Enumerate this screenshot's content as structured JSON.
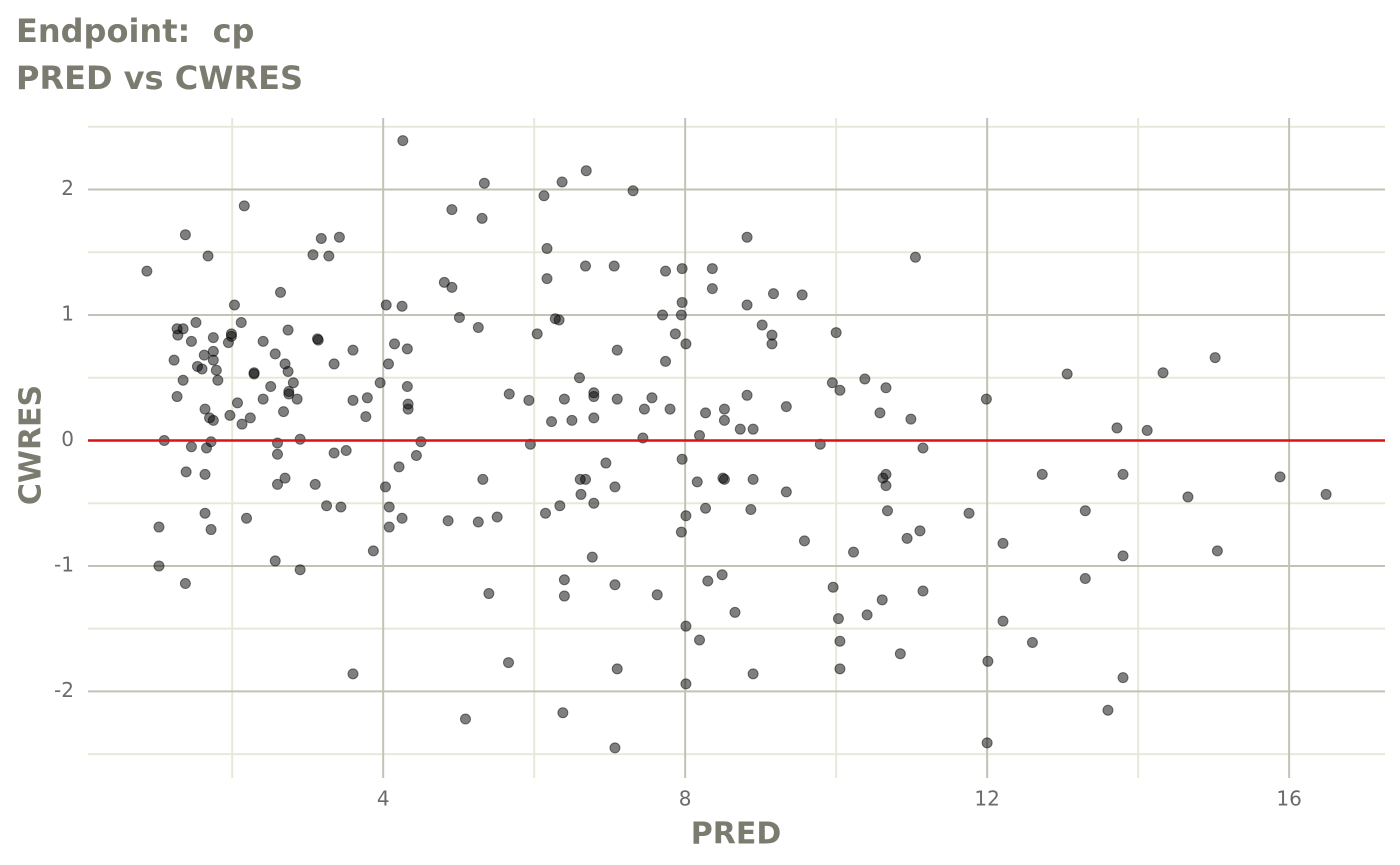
{
  "chart_data": {
    "type": "scatter",
    "title": "Endpoint:  cp",
    "subtitle": "PRED vs CWRES",
    "x_label": "PRED",
    "y_label": "CWRES",
    "xlim": [
      0.09,
      17.27
    ],
    "ylim": [
      -2.69,
      2.57
    ],
    "xticks": [
      4,
      8,
      12,
      16
    ],
    "yticks": [
      -2,
      -1,
      0,
      1,
      2
    ],
    "x_minor_grid": [
      2,
      6,
      10,
      14
    ],
    "y_minor_grid": [
      -2.5,
      -1.5,
      -0.5,
      0.5,
      1.5,
      2.5
    ],
    "grid": true,
    "grid_color": "#c2c2b6",
    "minor_grid_color": "#e8e8da",
    "hline": 0,
    "hline_color": "#dd1111",
    "color": "#000000",
    "alpha": 0.5,
    "x": [
      0.87,
      1.03,
      1.03,
      1.1,
      1.38,
      1.38,
      1.27,
      1.35,
      1.28,
      1.23,
      1.27,
      1.35,
      1.39,
      1.46,
      1.46,
      1.52,
      1.54,
      1.6,
      1.63,
      1.64,
      1.64,
      1.64,
      1.66,
      1.68,
      1.7,
      1.72,
      1.72,
      1.75,
      1.75,
      1.75,
      1.75,
      1.79,
      1.81,
      1.95,
      1.97,
      1.99,
      1.99,
      2.03,
      2.07,
      2.12,
      2.13,
      2.16,
      2.19,
      2.24,
      2.29,
      2.29,
      2.41,
      2.41,
      2.51,
      2.57,
      2.57,
      2.6,
      2.6,
      2.6,
      2.64,
      2.68,
      2.7,
      2.7,
      2.74,
      2.74,
      2.75,
      2.75,
      2.81,
      2.86,
      2.9,
      2.9,
      3.07,
      3.1,
      3.13,
      3.14,
      3.18,
      3.25,
      3.28,
      3.35,
      3.35,
      3.42,
      3.44,
      3.51,
      3.6,
      3.6,
      3.6,
      3.77,
      3.79,
      3.87,
      3.96,
      4.03,
      4.04,
      4.07,
      4.08,
      4.08,
      4.15,
      4.21,
      4.25,
      4.25,
      4.26,
      4.32,
      4.32,
      4.33,
      4.33,
      4.44,
      4.5,
      4.81,
      4.86,
      4.91,
      4.91,
      5.01,
      5.09,
      5.26,
      5.26,
      5.31,
      5.32,
      5.34,
      5.4,
      5.51,
      5.66,
      5.67,
      5.93,
      5.95,
      6.04,
      6.13,
      6.15,
      6.17,
      6.17,
      6.23,
      6.28,
      6.33,
      6.34,
      6.37,
      6.38,
      6.4,
      6.4,
      6.4,
      6.5,
      6.6,
      6.61,
      6.62,
      6.68,
      6.68,
      6.69,
      6.77,
      6.79,
      6.79,
      6.79,
      6.79,
      6.95,
      7.06,
      7.07,
      7.07,
      7.07,
      7.1,
      7.1,
      7.1,
      7.31,
      7.44,
      7.46,
      7.56,
      7.63,
      7.7,
      7.74,
      7.74,
      7.8,
      7.87,
      7.95,
      7.95,
      7.96,
      7.96,
      7.96,
      8.01,
      8.01,
      8.01,
      8.01,
      8.16,
      8.19,
      8.19,
      8.27,
      8.27,
      8.3,
      8.36,
      8.36,
      8.49,
      8.5,
      8.52,
      8.52,
      8.52,
      8.66,
      8.73,
      8.82,
      8.82,
      8.82,
      8.87,
      8.9,
      8.9,
      8.9,
      9.02,
      9.15,
      9.15,
      9.17,
      9.34,
      9.34,
      9.55,
      9.58,
      9.79,
      9.95,
      9.96,
      10.0,
      10.03,
      10.05,
      10.05,
      10.05,
      10.23,
      10.38,
      10.41,
      10.58,
      10.61,
      10.62,
      10.66,
      10.66,
      10.66,
      10.68,
      10.85,
      10.94,
      10.99,
      11.05,
      11.11,
      11.15,
      11.15,
      11.76,
      11.99,
      12.0,
      12.01,
      12.21,
      12.21,
      12.6,
      12.73,
      13.06,
      13.3,
      13.3,
      13.6,
      13.72,
      13.8,
      13.8,
      13.8,
      14.12,
      14.33,
      14.66,
      15.02,
      15.05,
      15.88,
      16.49
    ],
    "values": [
      1.35,
      -1.0,
      -0.69,
      0.0,
      -1.14,
      1.64,
      0.89,
      0.89,
      0.84,
      0.64,
      0.35,
      0.48,
      -0.25,
      -0.05,
      0.79,
      0.94,
      0.59,
      0.57,
      0.68,
      0.25,
      -0.27,
      -0.58,
      -0.06,
      1.47,
      0.18,
      -0.71,
      -0.01,
      0.82,
      0.71,
      0.64,
      0.16,
      0.56,
      0.48,
      0.78,
      0.2,
      0.85,
      0.83,
      1.08,
      0.3,
      0.94,
      0.13,
      1.87,
      -0.62,
      0.18,
      0.53,
      0.54,
      0.79,
      0.33,
      0.43,
      0.69,
      -0.96,
      -0.02,
      -0.11,
      -0.35,
      1.18,
      0.23,
      0.61,
      -0.3,
      0.88,
      0.55,
      0.37,
      0.39,
      0.46,
      0.33,
      -1.03,
      0.01,
      1.48,
      -0.35,
      0.81,
      0.8,
      1.61,
      -0.52,
      1.47,
      -0.1,
      0.61,
      1.62,
      -0.53,
      -0.08,
      0.72,
      -1.86,
      0.32,
      0.19,
      0.34,
      -0.88,
      0.46,
      -0.37,
      1.08,
      0.61,
      -0.53,
      -0.69,
      0.77,
      -0.21,
      1.07,
      -0.62,
      2.39,
      0.73,
      0.43,
      0.29,
      0.25,
      -0.12,
      -0.01,
      1.26,
      -0.64,
      1.84,
      1.22,
      0.98,
      -2.22,
      0.9,
      -0.65,
      1.77,
      -0.31,
      2.05,
      -1.22,
      -0.61,
      -1.77,
      0.37,
      0.32,
      -0.03,
      0.85,
      1.95,
      -0.58,
      1.53,
      1.29,
      0.15,
      0.97,
      0.96,
      -0.52,
      2.06,
      -2.17,
      -1.11,
      -1.24,
      0.33,
      0.16,
      0.5,
      -0.31,
      -0.43,
      1.39,
      -0.31,
      2.15,
      -0.93,
      0.38,
      0.35,
      0.18,
      -0.5,
      -0.18,
      1.39,
      -2.45,
      -1.15,
      -0.37,
      0.33,
      0.72,
      -1.82,
      1.99,
      0.02,
      0.25,
      0.34,
      -1.23,
      1.0,
      1.35,
      0.63,
      0.25,
      0.85,
      1.0,
      -0.73,
      1.37,
      1.1,
      -0.15,
      -1.94,
      -1.48,
      0.77,
      -0.6,
      -0.33,
      0.04,
      -1.59,
      -0.54,
      0.22,
      -1.12,
      1.37,
      1.21,
      -1.07,
      -0.3,
      0.25,
      0.16,
      -0.31,
      -1.37,
      0.09,
      1.62,
      1.08,
      0.36,
      -0.55,
      0.09,
      -0.31,
      -1.86,
      0.92,
      0.84,
      0.77,
      1.17,
      0.27,
      -0.41,
      1.16,
      -0.8,
      -0.03,
      0.46,
      -1.17,
      0.86,
      -1.42,
      0.4,
      -1.6,
      -1.82,
      -0.89,
      0.49,
      -1.39,
      0.22,
      -1.27,
      -0.3,
      -0.27,
      -0.36,
      0.42,
      -0.56,
      -1.7,
      -0.78,
      0.17,
      1.46,
      -0.72,
      -0.06,
      -1.2,
      -0.58,
      0.33,
      -2.41,
      -1.76,
      -0.82,
      -1.44,
      -1.61,
      -0.27,
      0.53,
      -0.56,
      -1.1,
      -2.15,
      0.1,
      -0.27,
      -0.92,
      -1.89,
      0.08,
      0.54,
      -0.45,
      0.66,
      -0.88,
      -0.29,
      -0.43
    ]
  }
}
